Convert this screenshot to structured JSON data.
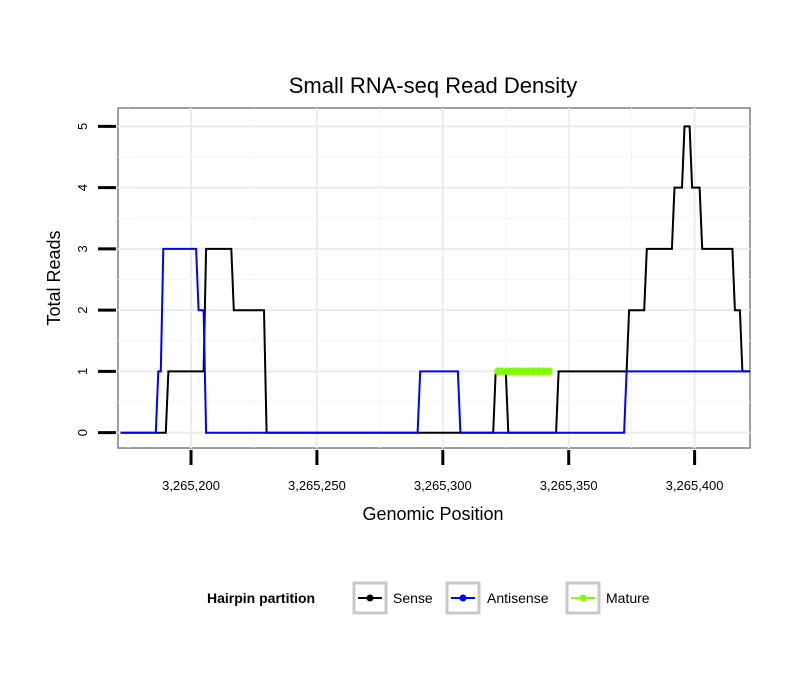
{
  "chart_data": {
    "type": "line",
    "title": "Small RNA-seq Read Density",
    "xlabel": "Genomic Position",
    "ylabel": "Total Reads",
    "xlim": [
      3265171,
      3265422
    ],
    "ylim": [
      -0.25,
      5.3
    ],
    "x_ticks": [
      3265200,
      3265250,
      3265300,
      3265350,
      3265400
    ],
    "x_tick_labels": [
      "3,265,200",
      "3,265,250",
      "3,265,300",
      "3,265,350",
      "3,265,400"
    ],
    "y_ticks": [
      0,
      1,
      2,
      3,
      4,
      5
    ],
    "y_tick_labels": [
      "0",
      "1",
      "2",
      "3",
      "4",
      "5"
    ],
    "grid": true,
    "legend": {
      "title": "Hairpin partition",
      "position": "bottom",
      "entries": [
        "Sense",
        "Antisense",
        "Mature"
      ]
    },
    "series": [
      {
        "name": "Sense",
        "color": "#000000",
        "kind": "line",
        "x": [
          3265172,
          3265190,
          3265191,
          3265205,
          3265206,
          3265216,
          3265217,
          3265229,
          3265230,
          3265320,
          3265321,
          3265325,
          3265326,
          3265345,
          3265346,
          3265373,
          3265374,
          3265380,
          3265381,
          3265391,
          3265392,
          3265395,
          3265396,
          3265398,
          3265399,
          3265402,
          3265403,
          3265415,
          3265416,
          3265418,
          3265419,
          3265422
        ],
        "y": [
          0,
          0,
          1,
          1,
          3,
          3,
          2,
          2,
          0,
          0,
          1,
          1,
          0,
          0,
          1,
          1,
          2,
          2,
          3,
          3,
          4,
          4,
          5,
          5,
          4,
          4,
          3,
          3,
          2,
          2,
          1,
          1
        ]
      },
      {
        "name": "Antisense",
        "color": "#0000ff",
        "kind": "line",
        "x": [
          3265172,
          3265186,
          3265187,
          3265188,
          3265189,
          3265202,
          3265203,
          3265205,
          3265206,
          3265290,
          3265291,
          3265306,
          3265307,
          3265372,
          3265373,
          3265421
        ],
        "y": [
          0,
          0,
          1,
          1,
          3,
          3,
          2,
          2,
          0,
          0,
          1,
          1,
          0,
          0,
          1,
          1
        ]
      },
      {
        "name": "Mature",
        "color": "#7fff00",
        "kind": "line_points",
        "x": [
          3265322,
          3265324,
          3265326,
          3265328,
          3265330,
          3265332,
          3265334,
          3265336,
          3265338,
          3265340,
          3265342
        ],
        "y": [
          1,
          1,
          1,
          1,
          1,
          1,
          1,
          1,
          1,
          1,
          1
        ]
      }
    ]
  }
}
